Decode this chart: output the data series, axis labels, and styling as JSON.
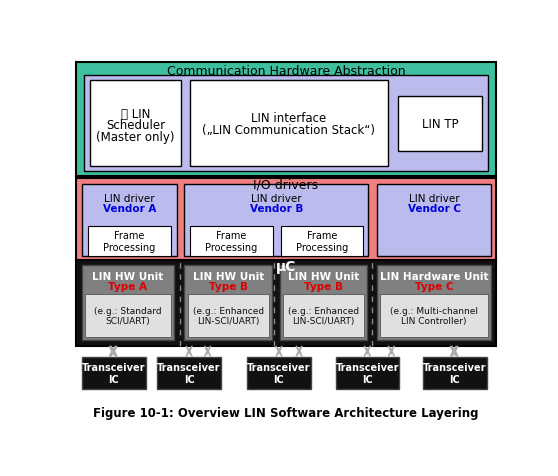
{
  "title": "Figure 10-1: Overview LIN Software Architecture Layering",
  "colors": {
    "teal_bg": "#3DBFA0",
    "lavender_bg": "#BBBBEE",
    "pink_bg": "#F08080",
    "light_blue_box": "#BBBBEE",
    "black_bg": "#111111",
    "white": "#FFFFFF",
    "black": "#000000",
    "blue_text": "#0000DD",
    "red_text": "#DD0000",
    "gray_box_dark": "#808080",
    "gray_box_light": "#C8C8C8",
    "gray_box_lighter": "#E0E0E0",
    "dark_transceiver": "#111111",
    "arrow_gray": "#AAAAAA"
  },
  "comm_hw_label": "Communication Hardware Abstraction",
  "io_drivers_label": "I/O drivers",
  "uc_label": "μC",
  "lin_scheduler_line1": "⌛ LIN",
  "lin_scheduler_line2": "Scheduler",
  "lin_scheduler_line3": "(Master only)",
  "lin_interface_line1": "LIN interface",
  "lin_interface_line2": "(„LIN Communication Stack“)",
  "lin_tp_label": "LIN TP",
  "frame_proc_label": "Frame\nProcessing",
  "hw_unit_a_line1": "LIN HW Unit",
  "hw_unit_a_line2": "Type A",
  "hw_unit_a_sub": "(e.g.: Standard\nSCI/UART)",
  "hw_unit_b1_line1": "LIN HW Unit",
  "hw_unit_b1_line2": "Type B",
  "hw_unit_b1_sub": "(e.g.: Enhanced\nLIN-SCI/UART)",
  "hw_unit_b2_line1": "LIN HW Unit",
  "hw_unit_b2_line2": "Type B",
  "hw_unit_b2_sub": "(e.g.: Enhanced\nLIN-SCI/UART)",
  "hw_unit_c_line1": "LIN Hardware Unit",
  "hw_unit_c_line2": "Type C",
  "hw_unit_c_sub": "(e.g.: Multi-channel\nLIN Controller)",
  "transceiver_label": "Transceiver\nIC",
  "lin_driver_line1": "LIN driver",
  "vendor_a": "Vendor A",
  "vendor_b": "Vendor B",
  "vendor_c": "Vendor C"
}
